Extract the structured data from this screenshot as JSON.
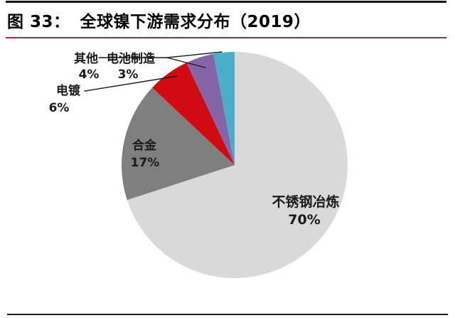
{
  "figure": {
    "label": "图 33：",
    "title": "全球镍下游需求分布（2019）"
  },
  "chart_data": {
    "type": "pie",
    "title": "全球镍下游需求分布（2019）",
    "categories": [
      "不锈钢冶炼",
      "合金",
      "电镀",
      "其他",
      "电池制造"
    ],
    "values": [
      70,
      17,
      6,
      4,
      3
    ],
    "value_labels": [
      "70%",
      "17%",
      "6%",
      "4%",
      "3%"
    ],
    "unit": "%",
    "colors": [
      "#d9d9d9",
      "#7f7f7f",
      "#d00b11",
      "#8565a8",
      "#4aadca"
    ],
    "start_angle_deg": 0,
    "direction": "clockwise",
    "legend": "none",
    "label_placement": "large slices labeled inside; small slices (电镀, 其他, 电池制造) labeled outside with black leader lines"
  },
  "rules": {
    "top_rule_color": "#141414",
    "accent_rule_color": "#a22741",
    "bottom_rule_color": "#1c1c1c",
    "leader_line_color": "#1a1a1a"
  }
}
